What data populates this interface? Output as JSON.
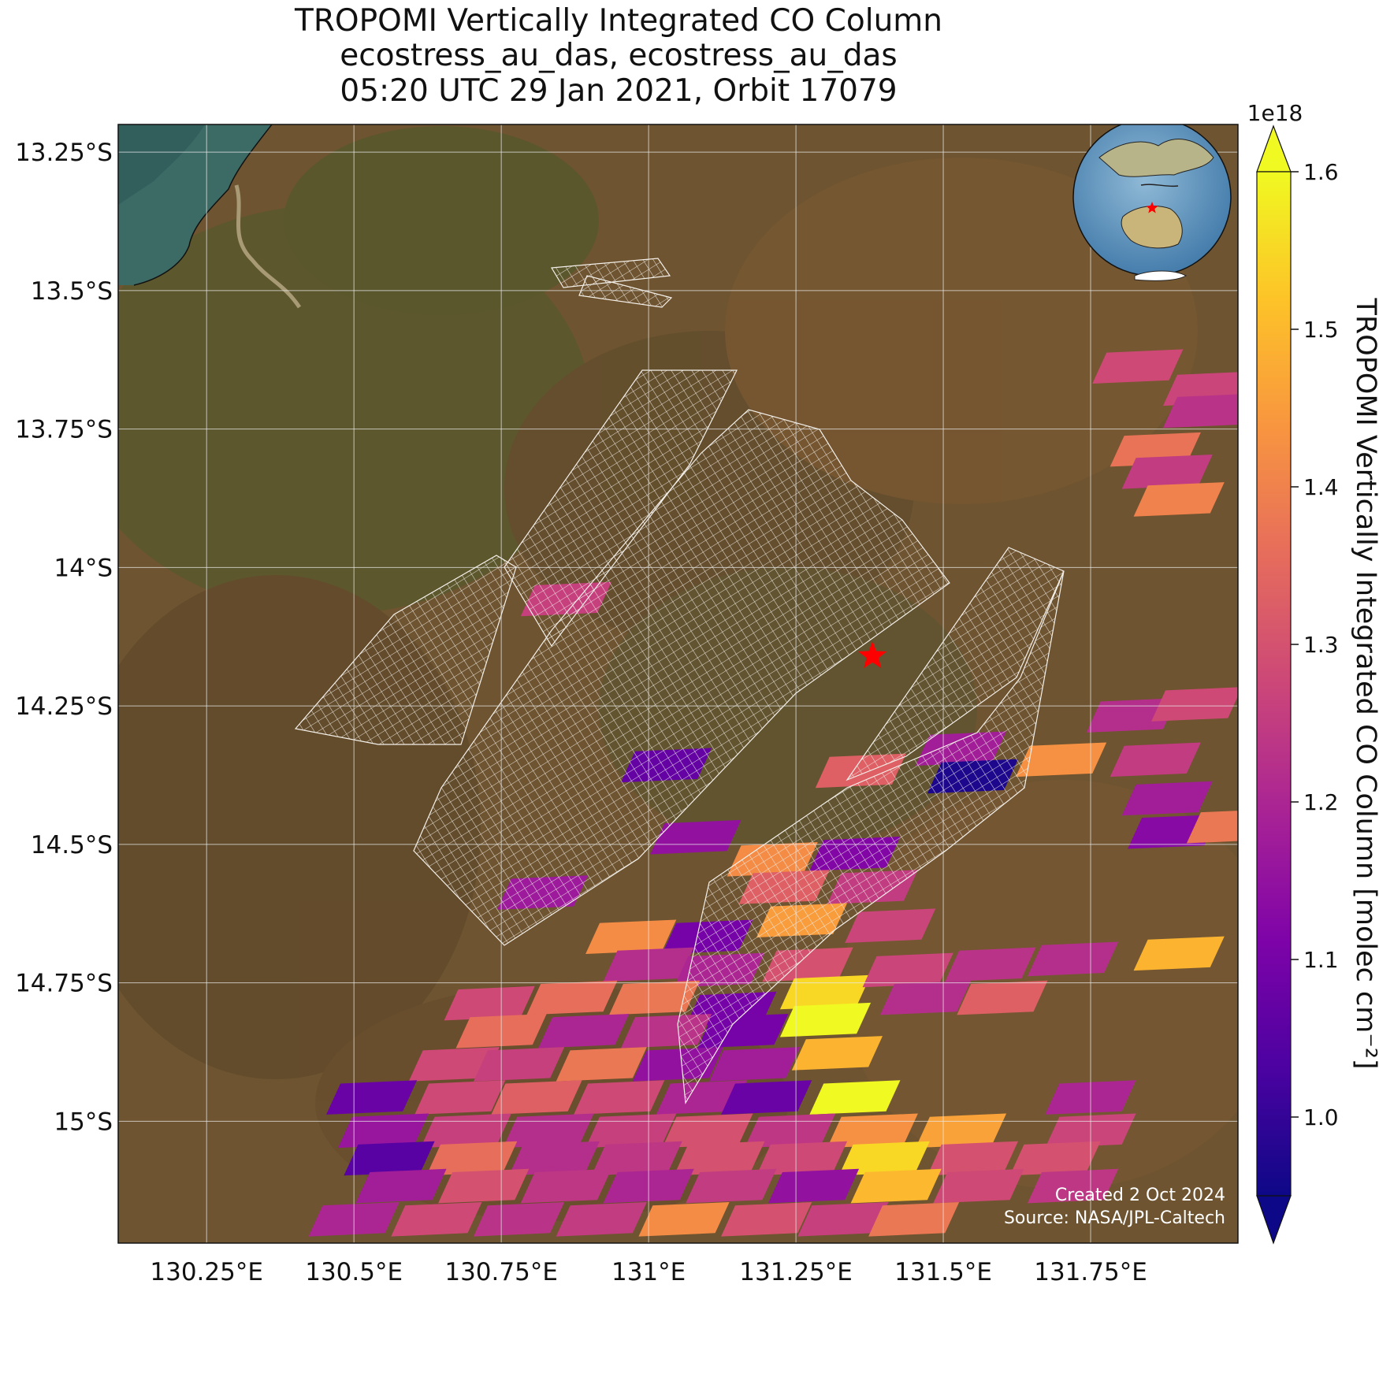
{
  "title": {
    "line1": "TROPOMI Vertically Integrated CO Column",
    "line2": "ecostress_au_das, ecostress_au_das",
    "line3": "05:20 UTC 29 Jan 2021, Orbit 17079"
  },
  "map": {
    "lon_range": [
      130.1,
      132.0
    ],
    "lat_range": [
      -15.22,
      -13.2
    ],
    "lon_ticks": [
      130.25,
      130.5,
      130.75,
      131.0,
      131.25,
      131.5,
      131.75
    ],
    "lon_tick_labels": [
      "130.25°E",
      "130.5°E",
      "130.75°E",
      "131°E",
      "131.25°E",
      "131.5°E",
      "131.75°E"
    ],
    "lat_ticks": [
      -13.25,
      -13.5,
      -13.75,
      -14.0,
      -14.25,
      -14.5,
      -14.75,
      -15.0
    ],
    "lat_tick_labels": [
      "13.25°S",
      "13.5°S",
      "13.75°S",
      "14°S",
      "14.25°S",
      "14.5°S",
      "14.75°S",
      "15°S"
    ],
    "gridlines": true,
    "basemap": "satellite imagery (tropical savanna, coastline top-left)",
    "site_marker": {
      "lon": 131.38,
      "lat": -14.16,
      "color": "#ff0000",
      "shape": "star"
    },
    "inset_globe": {
      "placement": "top-right",
      "marker_color": "#ff0000"
    },
    "footer_line1": "Created 2 Oct 2024",
    "footer_line2": "Source: NASA/JPL-Caltech"
  },
  "colorbar": {
    "label": "TROPOMI Vertically Integrated CO Column [molec cm⁻²]",
    "multiplier": "1e18",
    "min": 0.97,
    "max": 1.62,
    "ticks": [
      1.0,
      1.1,
      1.2,
      1.3,
      1.4,
      1.5,
      1.6
    ],
    "tick_labels": [
      "1.0",
      "1.1",
      "1.2",
      "1.3",
      "1.4",
      "1.5",
      "1.6"
    ],
    "colormap": "plasma",
    "extend": "both"
  },
  "chart_data": {
    "type": "heatmap",
    "title": "TROPOMI Vertically Integrated CO Column",
    "units": "1e18 molec cm-2",
    "pixels": [
      {
        "lon": 131.83,
        "lat": -13.64,
        "value": 1.28
      },
      {
        "lon": 131.95,
        "lat": -13.68,
        "value": 1.27
      },
      {
        "lon": 131.95,
        "lat": -13.72,
        "value": 1.23
      },
      {
        "lon": 131.86,
        "lat": -13.79,
        "value": 1.37
      },
      {
        "lon": 131.88,
        "lat": -13.83,
        "value": 1.25
      },
      {
        "lon": 131.9,
        "lat": -13.88,
        "value": 1.4
      },
      {
        "lon": 130.86,
        "lat": -14.06,
        "value": 1.26
      },
      {
        "lon": 131.36,
        "lat": -14.37,
        "value": 1.33
      },
      {
        "lon": 131.53,
        "lat": -14.33,
        "value": 1.18
      },
      {
        "lon": 131.55,
        "lat": -14.38,
        "value": 0.97
      },
      {
        "lon": 131.7,
        "lat": -14.35,
        "value": 1.43
      },
      {
        "lon": 131.82,
        "lat": -14.27,
        "value": 1.22
      },
      {
        "lon": 131.93,
        "lat": -14.25,
        "value": 1.28
      },
      {
        "lon": 131.86,
        "lat": -14.35,
        "value": 1.25
      },
      {
        "lon": 131.88,
        "lat": -14.42,
        "value": 1.18
      },
      {
        "lon": 131.89,
        "lat": -14.48,
        "value": 1.13
      },
      {
        "lon": 131.99,
        "lat": -14.47,
        "value": 1.38
      },
      {
        "lon": 131.03,
        "lat": -14.36,
        "value": 1.07
      },
      {
        "lon": 131.08,
        "lat": -14.49,
        "value": 1.15
      },
      {
        "lon": 130.82,
        "lat": -14.59,
        "value": 1.17
      },
      {
        "lon": 131.21,
        "lat": -14.53,
        "value": 1.42
      },
      {
        "lon": 131.35,
        "lat": -14.52,
        "value": 1.12
      },
      {
        "lon": 131.23,
        "lat": -14.58,
        "value": 1.33
      },
      {
        "lon": 131.38,
        "lat": -14.58,
        "value": 1.25
      },
      {
        "lon": 131.26,
        "lat": -14.64,
        "value": 1.45
      },
      {
        "lon": 131.41,
        "lat": -14.65,
        "value": 1.27
      },
      {
        "lon": 130.97,
        "lat": -14.67,
        "value": 1.42
      },
      {
        "lon": 131.1,
        "lat": -14.67,
        "value": 1.1
      },
      {
        "lon": 131.0,
        "lat": -14.72,
        "value": 1.22
      },
      {
        "lon": 131.12,
        "lat": -14.73,
        "value": 1.2
      },
      {
        "lon": 131.27,
        "lat": -14.72,
        "value": 1.3
      },
      {
        "lon": 131.3,
        "lat": -14.77,
        "value": 1.55
      },
      {
        "lon": 131.44,
        "lat": -14.73,
        "value": 1.27
      },
      {
        "lon": 131.58,
        "lat": -14.72,
        "value": 1.23
      },
      {
        "lon": 131.72,
        "lat": -14.71,
        "value": 1.22
      },
      {
        "lon": 131.9,
        "lat": -14.7,
        "value": 1.49
      },
      {
        "lon": 131.47,
        "lat": -14.78,
        "value": 1.22
      },
      {
        "lon": 131.6,
        "lat": -14.78,
        "value": 1.33
      },
      {
        "lon": 130.73,
        "lat": -14.79,
        "value": 1.28
      },
      {
        "lon": 130.87,
        "lat": -14.78,
        "value": 1.36
      },
      {
        "lon": 131.01,
        "lat": -14.78,
        "value": 1.38
      },
      {
        "lon": 131.14,
        "lat": -14.8,
        "value": 1.1
      },
      {
        "lon": 131.3,
        "lat": -14.82,
        "value": 1.6
      },
      {
        "lon": 130.75,
        "lat": -14.84,
        "value": 1.36
      },
      {
        "lon": 130.89,
        "lat": -14.84,
        "value": 1.2
      },
      {
        "lon": 131.03,
        "lat": -14.84,
        "value": 1.23
      },
      {
        "lon": 131.16,
        "lat": -14.84,
        "value": 1.1
      },
      {
        "lon": 131.32,
        "lat": -14.88,
        "value": 1.49
      },
      {
        "lon": 130.67,
        "lat": -14.9,
        "value": 1.28
      },
      {
        "lon": 130.78,
        "lat": -14.9,
        "value": 1.26
      },
      {
        "lon": 130.92,
        "lat": -14.9,
        "value": 1.38
      },
      {
        "lon": 131.05,
        "lat": -14.9,
        "value": 1.15
      },
      {
        "lon": 131.18,
        "lat": -14.9,
        "value": 1.18
      },
      {
        "lon": 130.53,
        "lat": -14.96,
        "value": 1.08
      },
      {
        "lon": 130.68,
        "lat": -14.96,
        "value": 1.28
      },
      {
        "lon": 130.81,
        "lat": -14.96,
        "value": 1.33
      },
      {
        "lon": 130.95,
        "lat": -14.96,
        "value": 1.28
      },
      {
        "lon": 131.09,
        "lat": -14.96,
        "value": 1.2
      },
      {
        "lon": 131.2,
        "lat": -14.96,
        "value": 1.08
      },
      {
        "lon": 131.35,
        "lat": -14.96,
        "value": 1.6
      },
      {
        "lon": 131.75,
        "lat": -14.96,
        "value": 1.2
      },
      {
        "lon": 130.55,
        "lat": -15.02,
        "value": 1.16
      },
      {
        "lon": 130.69,
        "lat": -15.02,
        "value": 1.26
      },
      {
        "lon": 130.83,
        "lat": -15.02,
        "value": 1.22
      },
      {
        "lon": 130.97,
        "lat": -15.02,
        "value": 1.26
      },
      {
        "lon": 131.1,
        "lat": -15.02,
        "value": 1.3
      },
      {
        "lon": 131.24,
        "lat": -15.02,
        "value": 1.24
      },
      {
        "lon": 131.38,
        "lat": -15.02,
        "value": 1.43
      },
      {
        "lon": 131.53,
        "lat": -15.02,
        "value": 1.46
      },
      {
        "lon": 131.75,
        "lat": -15.02,
        "value": 1.27
      },
      {
        "lon": 130.56,
        "lat": -15.07,
        "value": 1.05
      },
      {
        "lon": 130.7,
        "lat": -15.07,
        "value": 1.36
      },
      {
        "lon": 130.84,
        "lat": -15.07,
        "value": 1.22
      },
      {
        "lon": 130.98,
        "lat": -15.07,
        "value": 1.24
      },
      {
        "lon": 131.12,
        "lat": -15.07,
        "value": 1.3
      },
      {
        "lon": 131.26,
        "lat": -15.07,
        "value": 1.28
      },
      {
        "lon": 131.4,
        "lat": -15.07,
        "value": 1.55
      },
      {
        "lon": 131.55,
        "lat": -15.07,
        "value": 1.3
      },
      {
        "lon": 131.69,
        "lat": -15.07,
        "value": 1.3
      },
      {
        "lon": 130.58,
        "lat": -15.12,
        "value": 1.18
      },
      {
        "lon": 130.72,
        "lat": -15.12,
        "value": 1.3
      },
      {
        "lon": 130.86,
        "lat": -15.12,
        "value": 1.24
      },
      {
        "lon": 131.0,
        "lat": -15.12,
        "value": 1.2
      },
      {
        "lon": 131.14,
        "lat": -15.12,
        "value": 1.25
      },
      {
        "lon": 131.28,
        "lat": -15.12,
        "value": 1.15
      },
      {
        "lon": 131.42,
        "lat": -15.12,
        "value": 1.5
      },
      {
        "lon": 131.56,
        "lat": -15.12,
        "value": 1.28
      },
      {
        "lon": 131.72,
        "lat": -15.12,
        "value": 1.24
      },
      {
        "lon": 130.5,
        "lat": -15.18,
        "value": 1.2
      },
      {
        "lon": 130.64,
        "lat": -15.18,
        "value": 1.28
      },
      {
        "lon": 130.78,
        "lat": -15.18,
        "value": 1.23
      },
      {
        "lon": 130.92,
        "lat": -15.18,
        "value": 1.25
      },
      {
        "lon": 131.06,
        "lat": -15.18,
        "value": 1.42
      },
      {
        "lon": 131.2,
        "lat": -15.18,
        "value": 1.3
      },
      {
        "lon": 131.33,
        "lat": -15.18,
        "value": 1.26
      },
      {
        "lon": 131.45,
        "lat": -15.18,
        "value": 1.38
      }
    ]
  }
}
